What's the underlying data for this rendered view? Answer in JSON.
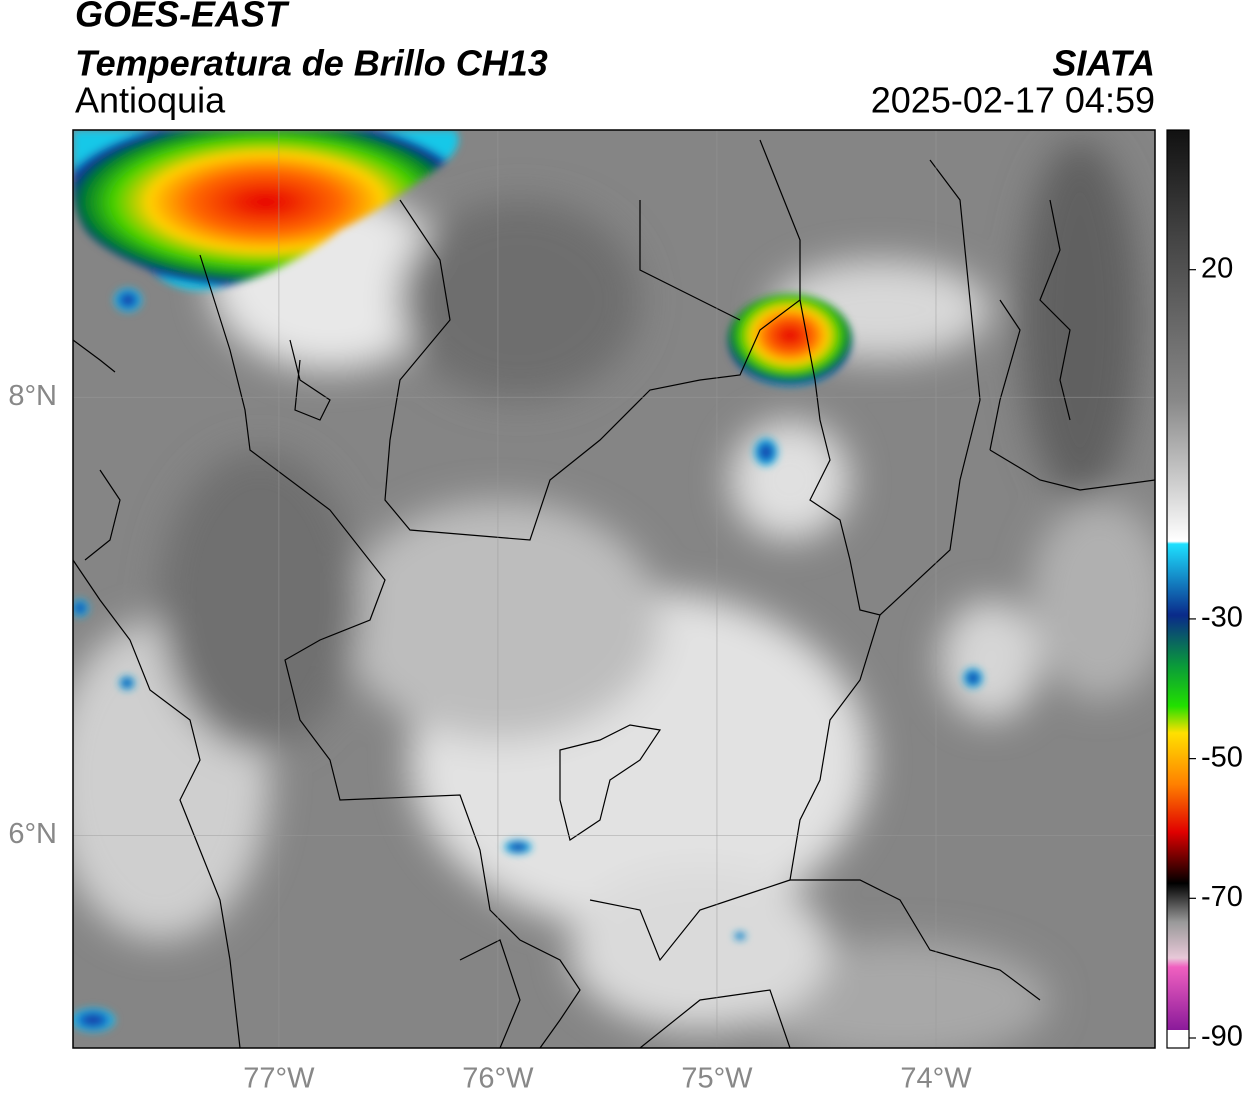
{
  "chart_data": {
    "type": "map",
    "title": "GOES-EAST",
    "subtitle": "Temperatura de Brillo CH13",
    "region": "Antioquia",
    "source": "SIATA",
    "date": "2025-02-17 04:59",
    "xlim": [
      -77.94,
      -73.0
    ],
    "ylim": [
      5.03,
      9.22
    ],
    "xticks": [
      {
        "value": -77,
        "label": "77°W"
      },
      {
        "value": -76,
        "label": "76°W"
      },
      {
        "value": -75,
        "label": "75°W"
      },
      {
        "value": -74,
        "label": "74°W"
      }
    ],
    "yticks": [
      {
        "value": 8,
        "label": "8°N"
      },
      {
        "value": 6,
        "label": "6°N"
      }
    ],
    "grid": true,
    "colorbar": {
      "lim": [
        -90,
        40
      ],
      "ticks": [
        20,
        -30,
        -50,
        -70,
        -90
      ]
    }
  }
}
